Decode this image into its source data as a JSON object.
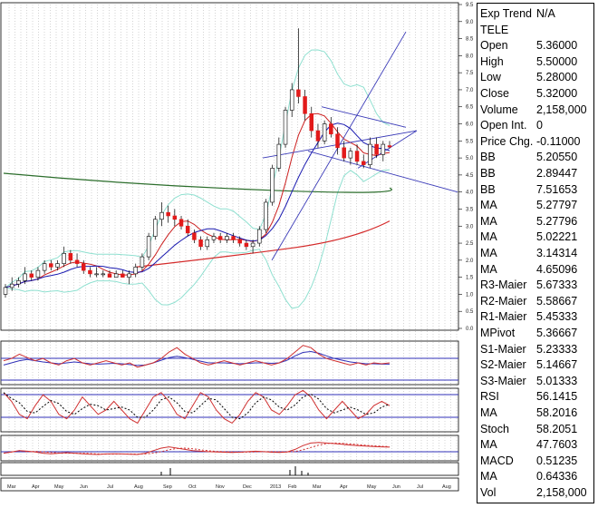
{
  "symbol": "TELE",
  "info_rows": [
    {
      "label": "Exp Trend",
      "value": "N/A"
    },
    {
      "label": "TELE",
      "value": ""
    },
    {
      "label": "Open",
      "value": "5.36000"
    },
    {
      "label": "High",
      "value": "5.50000"
    },
    {
      "label": "Low",
      "value": "5.28000"
    },
    {
      "label": "Close",
      "value": "5.32000"
    },
    {
      "label": "Volume",
      "value": "2,158,000"
    },
    {
      "label": "Open Int.",
      "value": "0"
    },
    {
      "label": "Price Chg.",
      "value": "-0.11000"
    },
    {
      "label": "BB",
      "value": "5.20550"
    },
    {
      "label": "BB",
      "value": "2.89447"
    },
    {
      "label": "BB",
      "value": "7.51653"
    },
    {
      "label": "MA",
      "value": "5.27797"
    },
    {
      "label": "MA",
      "value": "5.27796"
    },
    {
      "label": "MA",
      "value": "5.02221"
    },
    {
      "label": "MA",
      "value": "3.14314"
    },
    {
      "label": "MA",
      "value": "4.65096"
    },
    {
      "label": "R3-Maier",
      "value": "5.67333"
    },
    {
      "label": "R2-Maier",
      "value": "5.58667"
    },
    {
      "label": "R1-Maier",
      "value": "5.45333"
    },
    {
      "label": "MPivot",
      "value": "5.36667"
    },
    {
      "label": "S1-Maier",
      "value": "5.23333"
    },
    {
      "label": "S2-Maier",
      "value": "5.14667"
    },
    {
      "label": "S3-Maier",
      "value": "5.01333"
    },
    {
      "label": "RSI",
      "value": "56.1415"
    },
    {
      "label": "MA",
      "value": "58.2016"
    },
    {
      "label": "Stoch",
      "value": "58.2051"
    },
    {
      "label": "MA",
      "value": "47.7603"
    },
    {
      "label": "MACD",
      "value": "0.51235"
    },
    {
      "label": "MA",
      "value": "0.64336"
    },
    {
      "label": "Vol",
      "value": "2,158,000"
    }
  ],
  "colors": {
    "up": "#ffffff",
    "down": "#e21a1a",
    "ma_fast": "#1a1ab0",
    "ma_mid": "#cc2020",
    "ma_long_green": "#2c6e2c",
    "ma_long_red": "#d42a2a",
    "bb": "#8fe0d0",
    "trend": "#3a3ab8",
    "grid": "#b8b8b8",
    "osc_blue": "#3030b8",
    "osc_red": "#d03030"
  },
  "chart_data": [
    {
      "type": "candlestick",
      "title": "TELE",
      "xlabel": "",
      "ylabel": "",
      "ylim": [
        0,
        9.5
      ],
      "y_ticks": [
        "9.5",
        "9.0",
        "8.5",
        "8.0",
        "7.5",
        "7.0",
        "6.5",
        "6.0",
        "5.5",
        "5.0",
        "4.5",
        "4.0",
        "3.5",
        "3.0",
        "2.5",
        "2.0",
        "1.5",
        "1.0",
        "0.5",
        "0.0"
      ],
      "x_tick_labels": [
        "Mar",
        "Apr",
        "May",
        "Jun",
        "Jul",
        "Aug",
        "Sep",
        "Oct",
        "Nov",
        "Dec",
        "2013",
        "Feb",
        "Mar",
        "Apr",
        "May",
        "Jun",
        "Jul",
        "Aug"
      ],
      "candles": [
        {
          "o": 1.0,
          "h": 1.3,
          "l": 0.9,
          "c": 1.2
        },
        {
          "o": 1.2,
          "h": 1.5,
          "l": 1.1,
          "c": 1.3
        },
        {
          "o": 1.3,
          "h": 1.5,
          "l": 1.2,
          "c": 1.4
        },
        {
          "o": 1.4,
          "h": 1.8,
          "l": 1.3,
          "c": 1.6
        },
        {
          "o": 1.6,
          "h": 1.7,
          "l": 1.4,
          "c": 1.5
        },
        {
          "o": 1.5,
          "h": 1.8,
          "l": 1.4,
          "c": 1.7
        },
        {
          "o": 1.7,
          "h": 2.0,
          "l": 1.6,
          "c": 1.9
        },
        {
          "o": 1.9,
          "h": 2.0,
          "l": 1.7,
          "c": 1.8
        },
        {
          "o": 1.8,
          "h": 2.0,
          "l": 1.7,
          "c": 1.9
        },
        {
          "o": 1.9,
          "h": 2.4,
          "l": 1.8,
          "c": 2.2
        },
        {
          "o": 2.2,
          "h": 2.3,
          "l": 1.9,
          "c": 2.0
        },
        {
          "o": 2.0,
          "h": 2.2,
          "l": 1.8,
          "c": 1.9
        },
        {
          "o": 1.9,
          "h": 2.0,
          "l": 1.6,
          "c": 1.7
        },
        {
          "o": 1.7,
          "h": 1.8,
          "l": 1.5,
          "c": 1.6
        },
        {
          "o": 1.6,
          "h": 1.8,
          "l": 1.5,
          "c": 1.6
        },
        {
          "o": 1.6,
          "h": 1.7,
          "l": 1.5,
          "c": 1.6
        },
        {
          "o": 1.6,
          "h": 1.7,
          "l": 1.5,
          "c": 1.5
        },
        {
          "o": 1.5,
          "h": 1.7,
          "l": 1.5,
          "c": 1.6
        },
        {
          "o": 1.6,
          "h": 1.7,
          "l": 1.5,
          "c": 1.5
        },
        {
          "o": 1.5,
          "h": 1.7,
          "l": 1.3,
          "c": 1.6
        },
        {
          "o": 1.6,
          "h": 1.9,
          "l": 1.5,
          "c": 1.8
        },
        {
          "o": 1.8,
          "h": 2.2,
          "l": 1.7,
          "c": 2.1
        },
        {
          "o": 2.1,
          "h": 2.8,
          "l": 2.0,
          "c": 2.7
        },
        {
          "o": 2.7,
          "h": 3.3,
          "l": 2.6,
          "c": 3.2
        },
        {
          "o": 3.2,
          "h": 3.7,
          "l": 3.0,
          "c": 3.4
        },
        {
          "o": 3.4,
          "h": 3.6,
          "l": 3.1,
          "c": 3.3
        },
        {
          "o": 3.3,
          "h": 3.5,
          "l": 3.0,
          "c": 3.2
        },
        {
          "o": 3.2,
          "h": 3.3,
          "l": 2.9,
          "c": 3.0
        },
        {
          "o": 3.0,
          "h": 3.2,
          "l": 2.7,
          "c": 2.8
        },
        {
          "o": 2.8,
          "h": 2.9,
          "l": 2.5,
          "c": 2.6
        },
        {
          "o": 2.6,
          "h": 2.7,
          "l": 2.3,
          "c": 2.4
        },
        {
          "o": 2.4,
          "h": 2.7,
          "l": 2.3,
          "c": 2.6
        },
        {
          "o": 2.6,
          "h": 2.8,
          "l": 2.5,
          "c": 2.7
        },
        {
          "o": 2.7,
          "h": 2.8,
          "l": 2.5,
          "c": 2.6
        },
        {
          "o": 2.6,
          "h": 2.8,
          "l": 2.5,
          "c": 2.7
        },
        {
          "o": 2.7,
          "h": 2.8,
          "l": 2.5,
          "c": 2.6
        },
        {
          "o": 2.6,
          "h": 2.7,
          "l": 2.4,
          "c": 2.5
        },
        {
          "o": 2.5,
          "h": 2.6,
          "l": 2.3,
          "c": 2.4
        },
        {
          "o": 2.4,
          "h": 2.6,
          "l": 2.2,
          "c": 2.5
        },
        {
          "o": 2.5,
          "h": 3.0,
          "l": 2.4,
          "c": 2.9
        },
        {
          "o": 2.9,
          "h": 3.8,
          "l": 2.8,
          "c": 3.7
        },
        {
          "o": 3.7,
          "h": 4.8,
          "l": 3.6,
          "c": 4.7
        },
        {
          "o": 4.7,
          "h": 5.6,
          "l": 4.6,
          "c": 5.4
        },
        {
          "o": 5.4,
          "h": 6.5,
          "l": 5.3,
          "c": 6.4
        },
        {
          "o": 6.4,
          "h": 7.2,
          "l": 6.2,
          "c": 7.0
        },
        {
          "o": 7.0,
          "h": 8.8,
          "l": 6.6,
          "c": 6.8
        },
        {
          "o": 6.8,
          "h": 7.0,
          "l": 6.1,
          "c": 6.3
        },
        {
          "o": 6.3,
          "h": 6.5,
          "l": 5.6,
          "c": 5.8
        },
        {
          "o": 5.8,
          "h": 6.0,
          "l": 5.3,
          "c": 5.5
        },
        {
          "o": 5.5,
          "h": 6.1,
          "l": 5.4,
          "c": 6.0
        },
        {
          "o": 6.0,
          "h": 6.2,
          "l": 5.6,
          "c": 5.7
        },
        {
          "o": 5.7,
          "h": 5.9,
          "l": 5.1,
          "c": 5.3
        },
        {
          "o": 5.3,
          "h": 5.5,
          "l": 4.9,
          "c": 5.0
        },
        {
          "o": 5.0,
          "h": 5.3,
          "l": 4.8,
          "c": 5.2
        },
        {
          "o": 5.2,
          "h": 5.4,
          "l": 4.8,
          "c": 4.9
        },
        {
          "o": 4.9,
          "h": 5.1,
          "l": 4.7,
          "c": 4.8
        },
        {
          "o": 4.8,
          "h": 5.6,
          "l": 4.7,
          "c": 5.4
        },
        {
          "o": 5.4,
          "h": 5.6,
          "l": 5.0,
          "c": 5.1
        },
        {
          "o": 5.1,
          "h": 5.5,
          "l": 4.9,
          "c": 5.4
        },
        {
          "o": 5.36,
          "h": 5.5,
          "l": 5.28,
          "c": 5.32
        }
      ]
    }
  ]
}
